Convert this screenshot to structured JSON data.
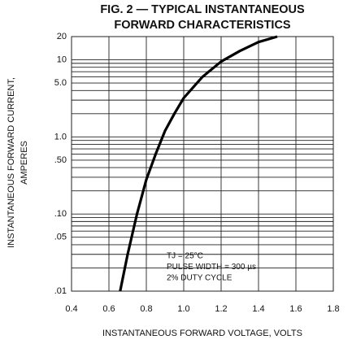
{
  "chart_data": {
    "type": "line",
    "title": [
      "FIG. 2 — TYPICAL INSTANTANEOUS",
      "FORWARD CHARACTERISTICS"
    ],
    "xlabel": "INSTANTANEOUS FORWARD VOLTAGE, VOLTS",
    "ylabel": [
      "INSTANTANEOUS FORWARD CURRENT,",
      "AMPERES"
    ],
    "annotations": [
      "TJ = 25°C",
      "PULSE WIDTH = 300 µs",
      "2% DUTY CYCLE"
    ],
    "x": [
      0.66,
      0.7,
      0.75,
      0.8,
      0.85,
      0.9,
      0.95,
      1.0,
      1.1,
      1.2,
      1.3,
      1.4,
      1.5
    ],
    "series": [
      {
        "name": "TJ = 25°C",
        "color": "#000000",
        "values": [
          0.01,
          0.03,
          0.1,
          0.28,
          0.6,
          1.2,
          2,
          3.2,
          6,
          9.5,
          13,
          17,
          20
        ]
      }
    ],
    "xlim": [
      0.4,
      1.8
    ],
    "xticks": [
      0.4,
      0.6,
      0.8,
      {
        "value": 1.0,
        "label": "1.0"
      },
      1.2,
      1.4,
      1.6,
      1.8
    ],
    "ylim": [
      0.01,
      20
    ],
    "yticks": [
      {
        "value": 0.01,
        "label": ".01"
      },
      {
        "value": 0.05,
        "label": ".05"
      },
      {
        "value": 0.1,
        "label": ".10"
      },
      {
        "value": 0.5,
        "label": ".50"
      },
      {
        "value": 1,
        "label": "1.0"
      },
      {
        "value": 5,
        "label": "5.0"
      },
      10,
      20
    ],
    "yminor": [
      0.02,
      0.03,
      0.04,
      0.06,
      0.07,
      0.08,
      0.09,
      0.2,
      0.3,
      0.4,
      0.6,
      0.7,
      0.8,
      0.9,
      2,
      3,
      4,
      6,
      7,
      8,
      9
    ],
    "ylog": true,
    "grid": true
  }
}
